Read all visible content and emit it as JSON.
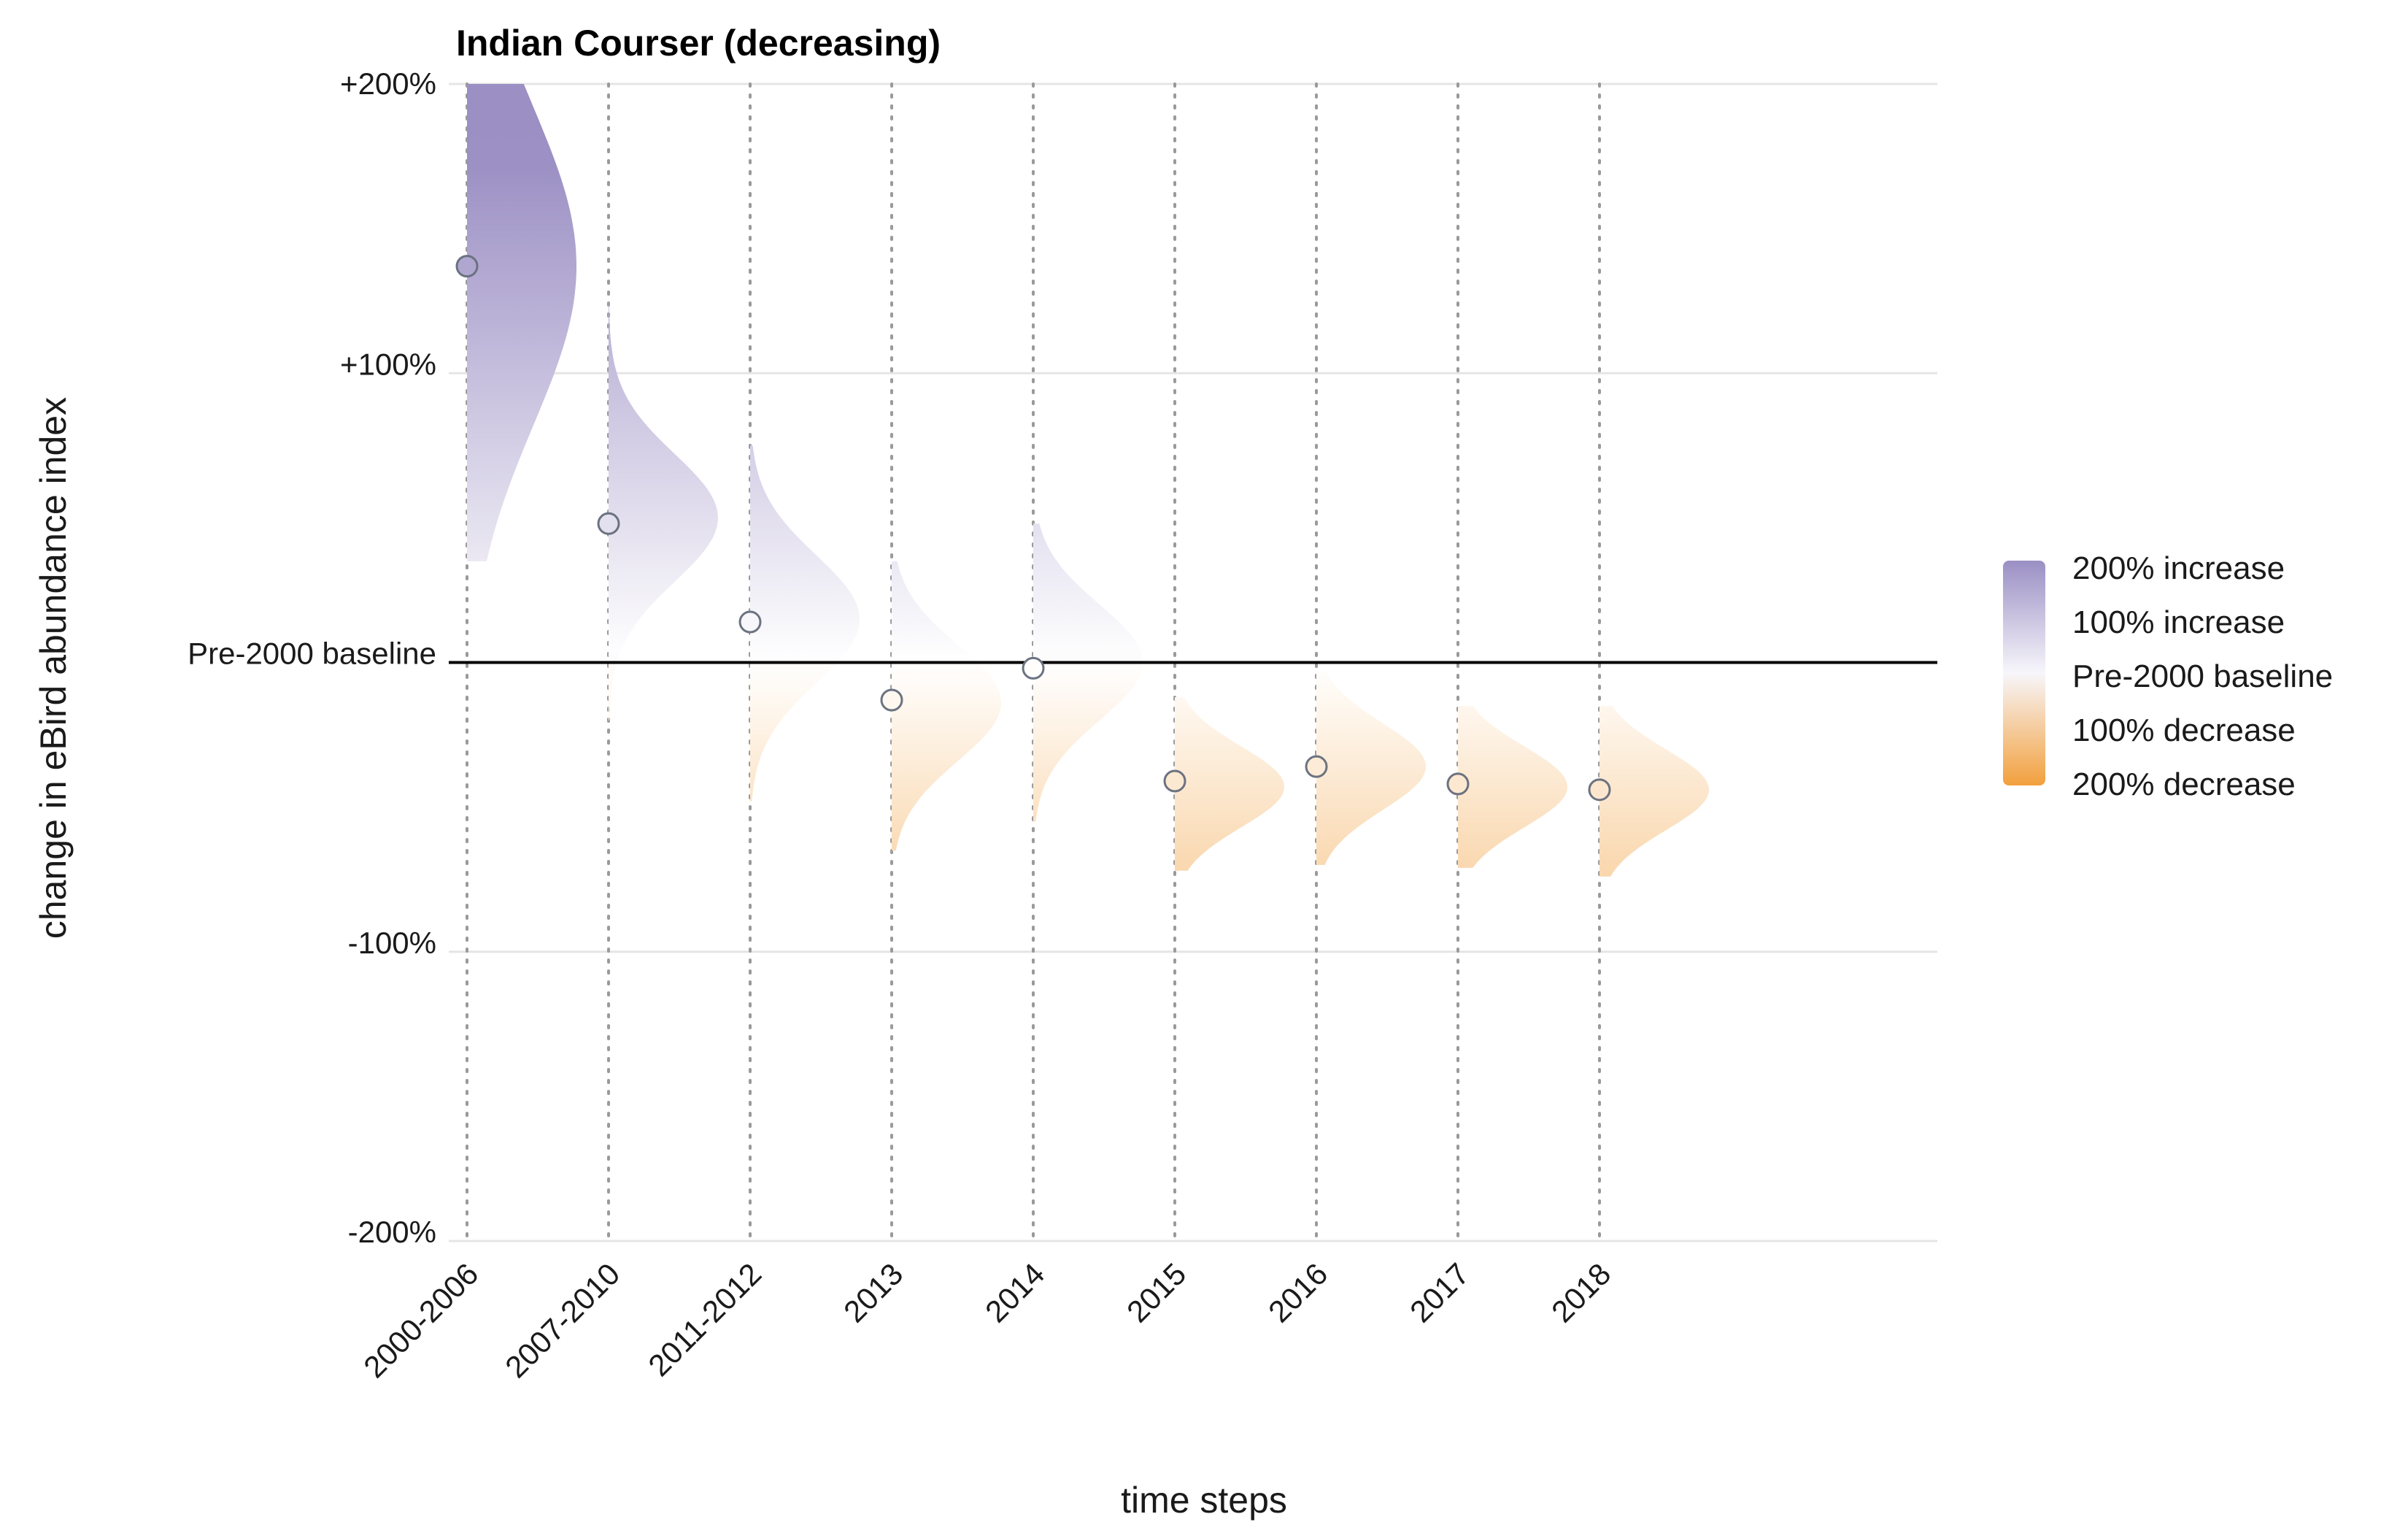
{
  "chart_data": {
    "type": "violin",
    "title": "Indian Courser (decreasing)",
    "xlabel": "time steps",
    "ylabel": "change in eBird abundance index",
    "baseline_label": "Pre-2000 baseline",
    "categories": [
      "2000-2006",
      "2007-2010",
      "2011-2012",
      "2013",
      "2014",
      "2015",
      "2016",
      "2017",
      "2018"
    ],
    "values": [
      137,
      48,
      14,
      -13,
      -2,
      -41,
      -36,
      -42,
      -44
    ],
    "distributions": [
      {
        "mean": 137,
        "sd": 55,
        "min": 35,
        "max": 200
      },
      {
        "mean": 50,
        "sd": 22,
        "min": -20,
        "max": 125
      },
      {
        "mean": 15,
        "sd": 22,
        "min": -48,
        "max": 75
      },
      {
        "mean": -14,
        "sd": 20,
        "min": -65,
        "max": 35
      },
      {
        "mean": 0,
        "sd": 20,
        "min": -55,
        "max": 48
      },
      {
        "mean": -43,
        "sd": 14,
        "min": -72,
        "max": -12
      },
      {
        "mean": -36,
        "sd": 15,
        "min": -70,
        "max": -2
      },
      {
        "mean": -43,
        "sd": 14,
        "min": -71,
        "max": -15
      },
      {
        "mean": -44,
        "sd": 14,
        "min": -74,
        "max": -15
      }
    ],
    "yticks": [
      {
        "value": 200,
        "label": "+200%"
      },
      {
        "value": 100,
        "label": "+100%"
      },
      {
        "value": 0,
        "label": "Pre-2000 baseline"
      },
      {
        "value": -100,
        "label": "-100%"
      },
      {
        "value": -200,
        "label": "-200%"
      }
    ],
    "ylim": [
      -200,
      200
    ],
    "grid": true,
    "legend": {
      "placement": "right",
      "items": [
        "200% increase",
        "100% increase",
        "Pre-2000 baseline",
        "100% decrease",
        "200% decrease"
      ],
      "colors": [
        "#9b8fc4",
        "#f7f6fb",
        "#f2a03d"
      ]
    },
    "colors": {
      "increase": "#9b8fc4",
      "decrease": "#f2a03d",
      "neutral": "#ffffff",
      "point_stroke": "#6b7280",
      "gridline": "#e5e5e5",
      "dotted": "#9a9a9a",
      "baseline": "#000000"
    }
  }
}
